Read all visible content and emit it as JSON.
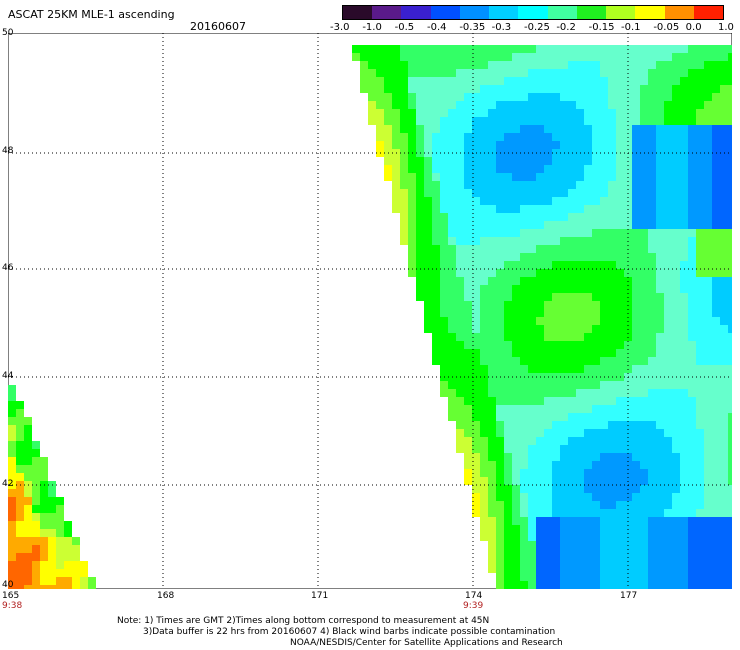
{
  "header": {
    "title": "ASCAT 25KM MLE-1 ascending",
    "date": "20160607"
  },
  "colorbar": {
    "labels": [
      "-3.0",
      "-1.0",
      "-0.5",
      "-0.4",
      "-0.35",
      "-0.3",
      "-0.25",
      "-0.2",
      "-0.15",
      "-0.1",
      "-0.05",
      "0.0",
      "1.0"
    ],
    "colors": [
      "#2a0a2a",
      "#5a1a8a",
      "#3a20d0",
      "#0050ff",
      "#0090ff",
      "#00d0ff",
      "#00ffff",
      "#40ffa0",
      "#20f020",
      "#b0ff20",
      "#ffff00",
      "#ff9000",
      "#ff2000"
    ]
  },
  "map": {
    "lat_labels": [
      "50",
      "48",
      "46",
      "44",
      "42",
      "40"
    ],
    "lon_labels": [
      "165",
      "168",
      "171",
      "174",
      "177"
    ],
    "time_labels": [
      "9:38",
      "9:39"
    ]
  },
  "notes": {
    "line1": "Note: 1) Times are GMT 2)Times along bottom correspond to measurement at 45N",
    "line2": "3)Data buffer is 22 hrs from 20160607 4) Black wind barbs indicate possible contamination",
    "line3": "NOAA/NESDIS/Center for Satellite Applications and Research"
  }
}
